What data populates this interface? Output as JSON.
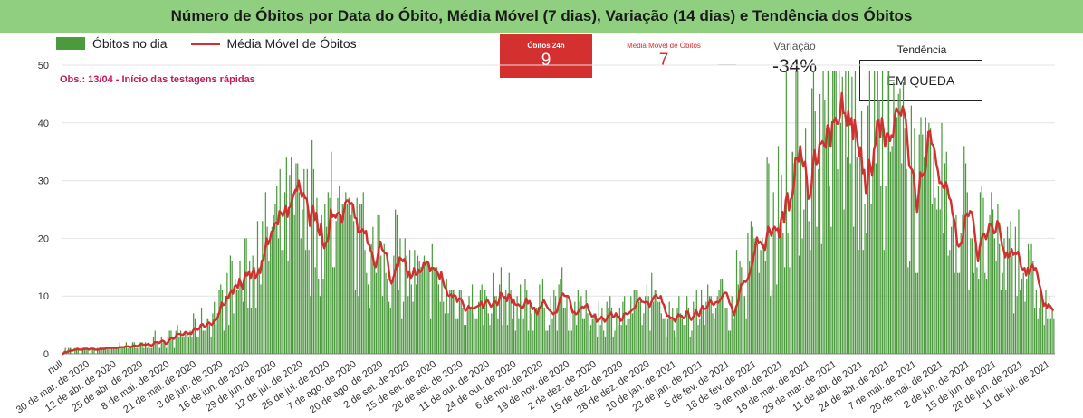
{
  "title": "Número de Óbitos por Data do Óbito, Média Móvel (7 dias), Variação (14 dias) e Tendência dos Óbitos",
  "legend": {
    "bars": "Óbitos no dia",
    "line": "Média Móvel de Óbitos"
  },
  "note": "Obs.: 13/04 - Início das testagens rápidas",
  "kpis": {
    "obitos_24h": {
      "label": "Óbitos 24h",
      "value": "9"
    },
    "media_movel": {
      "label": "Média Móvel de Óbitos",
      "value": "7"
    },
    "variacao": {
      "label": "Variação",
      "value": "-34%"
    },
    "tendencia": {
      "label": "Tendência",
      "value": "EM QUEDA"
    }
  },
  "colors": {
    "bars": "#4c9a3e",
    "line": "#cf3030",
    "kpi_red": "#d3302f",
    "title_bg": "#8fcf7f",
    "note": "#c2185b"
  },
  "chart_data": {
    "type": "bar",
    "x_tick_labels": [
      "null",
      "30 de mar. de 2020",
      "12 de abr. de 2020",
      "25 de abr. de 2020",
      "8 de mai. de 2020",
      "21 de mai. de 2020",
      "3 de jun. de 2020",
      "16 de jun. de 2020",
      "29 de jun. de 2020",
      "12 de jul. de 2020",
      "25 de jul. de 2020",
      "7 de ago. de 2020",
      "20 de ago. de 2020",
      "2 de set. de 2020",
      "15 de set. de 2020",
      "28 de set. de 2020",
      "11 de out. de 2020",
      "24 de out. de 2020",
      "6 de nov. de 2020",
      "19 de nov. de 2020",
      "2 de dez. de 2020",
      "15 de dez. de 2020",
      "28 de dez. de 2020",
      "10 de jan. de 2021",
      "23 de jan. de 2021",
      "5 de fev. de 2021",
      "18 de fev. de 2021",
      "3 de mar. de 2021",
      "16 de mar. de 2021",
      "29 de mar. de 2021",
      "11 de abr. de 2021",
      "24 de abr. de 2021",
      "7 de mai. de 2021",
      "20 de mai. de 2021",
      "2 de jun. de 2021",
      "15 de jun. de 2021",
      "28 de jun. de 2021",
      "11 de jul. de 2021"
    ],
    "y_ticks": [
      0,
      10,
      20,
      30,
      40,
      50
    ],
    "ylim": [
      0,
      50
    ],
    "grid": true,
    "legend_position": "top-left",
    "series": [
      {
        "name": "Óbitos no dia",
        "type": "bar"
      },
      {
        "name": "Média Móvel de Óbitos",
        "type": "line"
      }
    ],
    "moving_average_anchors": [
      [
        0,
        0.5
      ],
      [
        10,
        0.5
      ],
      [
        25,
        0.8
      ],
      [
        38,
        1.2
      ],
      [
        52,
        1.5
      ],
      [
        64,
        2.5
      ],
      [
        78,
        3.5
      ],
      [
        91,
        6
      ],
      [
        104,
        10
      ],
      [
        117,
        14
      ],
      [
        130,
        20
      ],
      [
        143,
        23.5
      ],
      [
        156,
        22
      ],
      [
        169,
        21
      ],
      [
        182,
        18.5
      ],
      [
        195,
        16
      ],
      [
        208,
        14.5
      ],
      [
        221,
        12.5
      ],
      [
        234,
        11
      ],
      [
        247,
        9.5
      ],
      [
        260,
        8.5
      ],
      [
        273,
        10
      ],
      [
        286,
        8
      ],
      [
        299,
        8.5
      ],
      [
        312,
        8.5
      ],
      [
        325,
        7
      ],
      [
        338,
        7
      ],
      [
        351,
        7
      ],
      [
        364,
        8
      ],
      [
        377,
        7
      ],
      [
        390,
        6.5
      ],
      [
        403,
        8
      ],
      [
        416,
        9
      ],
      [
        429,
        13
      ],
      [
        442,
        22
      ],
      [
        455,
        31
      ],
      [
        468,
        37
      ],
      [
        481,
        40
      ],
      [
        494,
        39
      ],
      [
        507,
        36
      ],
      [
        520,
        34
      ],
      [
        533,
        28
      ],
      [
        546,
        25
      ],
      [
        559,
        24
      ],
      [
        572,
        20
      ],
      [
        585,
        17
      ],
      [
        598,
        15
      ],
      [
        606,
        12
      ],
      [
        612,
        8
      ],
      [
        620,
        7
      ]
    ],
    "daily_deaths_peak": 49,
    "note_ref": "13/04"
  }
}
